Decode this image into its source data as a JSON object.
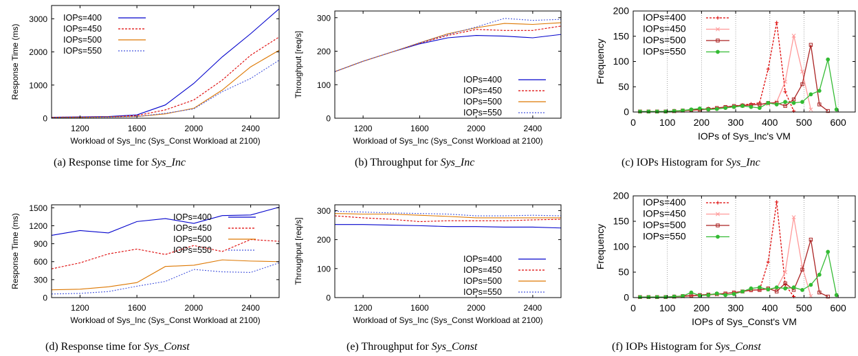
{
  "chart_data": [
    {
      "id": "a",
      "type": "line",
      "caption": {
        "prefix": "(a) Response time for ",
        "em": "Sys_Inc"
      },
      "xlabel": "Workload of Sys_Inc (Sys_Const Workload at 2100)",
      "ylabel": "Response Time (ms)",
      "xlim": [
        1000,
        2600
      ],
      "ylim": [
        0,
        3400
      ],
      "xticks": [
        1200,
        1600,
        2000,
        2400
      ],
      "yticks": [
        0,
        1000,
        2000,
        3000
      ],
      "legend": "top-left",
      "x": [
        1000,
        1200,
        1400,
        1600,
        1800,
        2000,
        2200,
        2400,
        2600
      ],
      "series": [
        {
          "name": "IOPs=400",
          "color": "#0000cc",
          "dash": "solid",
          "values": [
            30,
            40,
            50,
            100,
            400,
            1050,
            1850,
            2550,
            3300
          ]
        },
        {
          "name": "IOPs=450",
          "color": "#dd0000",
          "dash": "dashed",
          "values": [
            30,
            35,
            40,
            80,
            250,
            550,
            1150,
            1900,
            2450
          ]
        },
        {
          "name": "IOPs=500",
          "color": "#dd7700",
          "dash": "solid",
          "values": [
            20,
            25,
            35,
            50,
            130,
            300,
            850,
            1550,
            2050
          ]
        },
        {
          "name": "IOPs=550",
          "color": "#4455dd",
          "dash": "dotted",
          "values": [
            20,
            25,
            30,
            50,
            150,
            280,
            800,
            1200,
            1750
          ]
        }
      ]
    },
    {
      "id": "b",
      "type": "line",
      "caption": {
        "prefix": "(b) Throughput for ",
        "em": "Sys_Inc"
      },
      "xlabel": "Workload of Sys_Inc (Sys_Const Workload at 2100)",
      "ylabel": "Throughput [req/s]",
      "xlim": [
        1000,
        2600
      ],
      "ylim": [
        0,
        320
      ],
      "xticks": [
        1200,
        1600,
        2000,
        2400
      ],
      "yticks": [
        0,
        100,
        200,
        300
      ],
      "legend": "bottom-right",
      "x": [
        1000,
        1200,
        1400,
        1600,
        1800,
        2000,
        2200,
        2400,
        2600
      ],
      "series": [
        {
          "name": "IOPs=400",
          "color": "#0000cc",
          "dash": "solid",
          "values": [
            139,
            170,
            197,
            222,
            240,
            247,
            245,
            240,
            250
          ]
        },
        {
          "name": "IOPs=450",
          "color": "#dd0000",
          "dash": "dashed",
          "values": [
            139,
            170,
            197,
            224,
            247,
            265,
            262,
            262,
            275
          ]
        },
        {
          "name": "IOPs=500",
          "color": "#dd7700",
          "dash": "solid",
          "values": [
            139,
            170,
            197,
            225,
            252,
            270,
            283,
            280,
            285
          ]
        },
        {
          "name": "IOPs=550",
          "color": "#4455dd",
          "dash": "dotted",
          "values": [
            139,
            170,
            197,
            225,
            250,
            272,
            298,
            292,
            295
          ]
        }
      ]
    },
    {
      "id": "c",
      "type": "line",
      "caption": {
        "prefix": "(c) IOPs Histogram for ",
        "em": "Sys_Inc"
      },
      "xlabel": "IOPs of Sys_Inc's VM",
      "ylabel": "Frequency",
      "xlim": [
        0,
        650
      ],
      "ylim": [
        0,
        200
      ],
      "xticks": [
        0,
        100,
        200,
        300,
        400,
        500,
        600
      ],
      "yticks": [
        0,
        50,
        100,
        150,
        200
      ],
      "legend": "top-left",
      "x": [
        20,
        45,
        70,
        95,
        120,
        145,
        170,
        195,
        220,
        245,
        270,
        295,
        320,
        345,
        370,
        395,
        420,
        445,
        470,
        495,
        520,
        545,
        570,
        595
      ],
      "series": [
        {
          "name": "IOPs=400",
          "color": "#dd0000",
          "dash": "dashed",
          "marker": "plus",
          "values": [
            1,
            1,
            1,
            1,
            2,
            3,
            4,
            5,
            7,
            8,
            10,
            12,
            14,
            16,
            18,
            85,
            177,
            40,
            2,
            null,
            null,
            null,
            null,
            null
          ]
        },
        {
          "name": "IOPs=450",
          "color": "#ff9999",
          "dash": "solid",
          "marker": "x",
          "values": [
            1,
            1,
            1,
            1,
            1,
            2,
            3,
            4,
            5,
            7,
            9,
            10,
            12,
            14,
            15,
            16,
            20,
            60,
            151,
            80,
            5,
            null,
            null,
            null
          ]
        },
        {
          "name": "IOPs=500",
          "color": "#aa2222",
          "dash": "solid",
          "marker": "square",
          "values": [
            1,
            1,
            1,
            1,
            2,
            3,
            4,
            5,
            6,
            8,
            10,
            12,
            13,
            14,
            15,
            18,
            18,
            12,
            25,
            55,
            133,
            15,
            2,
            null
          ]
        },
        {
          "name": "IOPs=550",
          "color": "#33bb33",
          "dash": "solid",
          "marker": "circle",
          "values": [
            1,
            1,
            1,
            1,
            2,
            3,
            5,
            7,
            5,
            6,
            8,
            10,
            12,
            10,
            8,
            18,
            15,
            20,
            18,
            20,
            35,
            42,
            104,
            5
          ]
        }
      ]
    },
    {
      "id": "d",
      "type": "line",
      "caption": {
        "prefix": "(d) Response time for ",
        "em": "Sys_Const"
      },
      "xlabel": "Workload of Sys_Inc (Sys_Const Workload at 2100)",
      "ylabel": "Response Time (ms)",
      "xlim": [
        1000,
        2600
      ],
      "ylim": [
        0,
        1550
      ],
      "xticks": [
        1200,
        1600,
        2000,
        2400
      ],
      "yticks": [
        0,
        300,
        600,
        900,
        1200,
        1500
      ],
      "legend": "top-right",
      "x": [
        1000,
        1200,
        1400,
        1600,
        1800,
        2000,
        2200,
        2400,
        2600
      ],
      "series": [
        {
          "name": "IOPs=400",
          "color": "#0000cc",
          "dash": "solid",
          "values": [
            1040,
            1120,
            1080,
            1270,
            1320,
            1240,
            1370,
            1380,
            1510
          ]
        },
        {
          "name": "IOPs=450",
          "color": "#dd0000",
          "dash": "dashed",
          "values": [
            480,
            580,
            730,
            810,
            720,
            870,
            770,
            970,
            940
          ]
        },
        {
          "name": "IOPs=500",
          "color": "#dd7700",
          "dash": "solid",
          "values": [
            130,
            140,
            180,
            250,
            520,
            540,
            630,
            610,
            600
          ]
        },
        {
          "name": "IOPs=550",
          "color": "#4455dd",
          "dash": "dotted",
          "values": [
            60,
            70,
            100,
            190,
            270,
            470,
            430,
            420,
            580
          ]
        }
      ]
    },
    {
      "id": "e",
      "type": "line",
      "caption": {
        "prefix": "(e) Throughput for ",
        "em": "Sys_Const"
      },
      "xlabel": "Workload of Sys_Inc (Sys_Const Workload at 2100)",
      "ylabel": "Throughput [req/s]",
      "xlim": [
        1000,
        2600
      ],
      "ylim": [
        0,
        320
      ],
      "xticks": [
        1200,
        1600,
        2000,
        2400
      ],
      "yticks": [
        0,
        100,
        200,
        300
      ],
      "legend": "bottom-right",
      "x": [
        1000,
        1200,
        1400,
        1600,
        1800,
        2000,
        2200,
        2400,
        2600
      ],
      "series": [
        {
          "name": "IOPs=400",
          "color": "#0000cc",
          "dash": "solid",
          "values": [
            252,
            252,
            250,
            248,
            245,
            245,
            243,
            243,
            240
          ]
        },
        {
          "name": "IOPs=450",
          "color": "#dd0000",
          "dash": "dashed",
          "values": [
            282,
            275,
            270,
            262,
            265,
            265,
            265,
            268,
            270
          ]
        },
        {
          "name": "IOPs=500",
          "color": "#dd7700",
          "dash": "solid",
          "values": [
            290,
            288,
            288,
            284,
            280,
            275,
            275,
            275,
            275
          ]
        },
        {
          "name": "IOPs=550",
          "color": "#4455dd",
          "dash": "dotted",
          "values": [
            298,
            295,
            292,
            290,
            288,
            282,
            282,
            284,
            282
          ]
        }
      ]
    },
    {
      "id": "f",
      "type": "line",
      "caption": {
        "prefix": "(f) IOPs Histogram for ",
        "em": "Sys_Const"
      },
      "xlabel": "IOPs of Sys_Const's VM",
      "ylabel": "Frequency",
      "xlim": [
        0,
        650
      ],
      "ylim": [
        0,
        200
      ],
      "xticks": [
        0,
        100,
        200,
        300,
        400,
        500,
        600
      ],
      "yticks": [
        0,
        50,
        100,
        150,
        200
      ],
      "legend": "top-left",
      "x": [
        20,
        45,
        70,
        95,
        120,
        145,
        170,
        195,
        220,
        245,
        270,
        295,
        320,
        345,
        370,
        395,
        420,
        445,
        470,
        495,
        520,
        545,
        570,
        595
      ],
      "series": [
        {
          "name": "IOPs=400",
          "color": "#dd0000",
          "dash": "dashed",
          "marker": "plus",
          "values": [
            1,
            1,
            1,
            1,
            2,
            3,
            4,
            5,
            6,
            7,
            8,
            10,
            12,
            14,
            15,
            70,
            188,
            25,
            2,
            null,
            null,
            null,
            null,
            null
          ]
        },
        {
          "name": "IOPs=450",
          "color": "#ff9999",
          "dash": "solid",
          "marker": "x",
          "values": [
            1,
            1,
            1,
            1,
            1,
            2,
            3,
            4,
            5,
            6,
            8,
            10,
            12,
            14,
            15,
            16,
            18,
            50,
            158,
            60,
            3,
            null,
            null,
            null
          ]
        },
        {
          "name": "IOPs=500",
          "color": "#aa2222",
          "dash": "solid",
          "marker": "square",
          "values": [
            1,
            1,
            1,
            1,
            2,
            3,
            4,
            5,
            6,
            7,
            8,
            10,
            12,
            15,
            15,
            18,
            12,
            28,
            15,
            55,
            114,
            10,
            2,
            null
          ]
        },
        {
          "name": "IOPs=550",
          "color": "#33bb33",
          "dash": "solid",
          "marker": "circle",
          "values": [
            1,
            1,
            1,
            1,
            2,
            3,
            10,
            4,
            5,
            8,
            5,
            7,
            12,
            18,
            20,
            16,
            20,
            18,
            20,
            15,
            25,
            45,
            90,
            5
          ]
        }
      ]
    }
  ]
}
